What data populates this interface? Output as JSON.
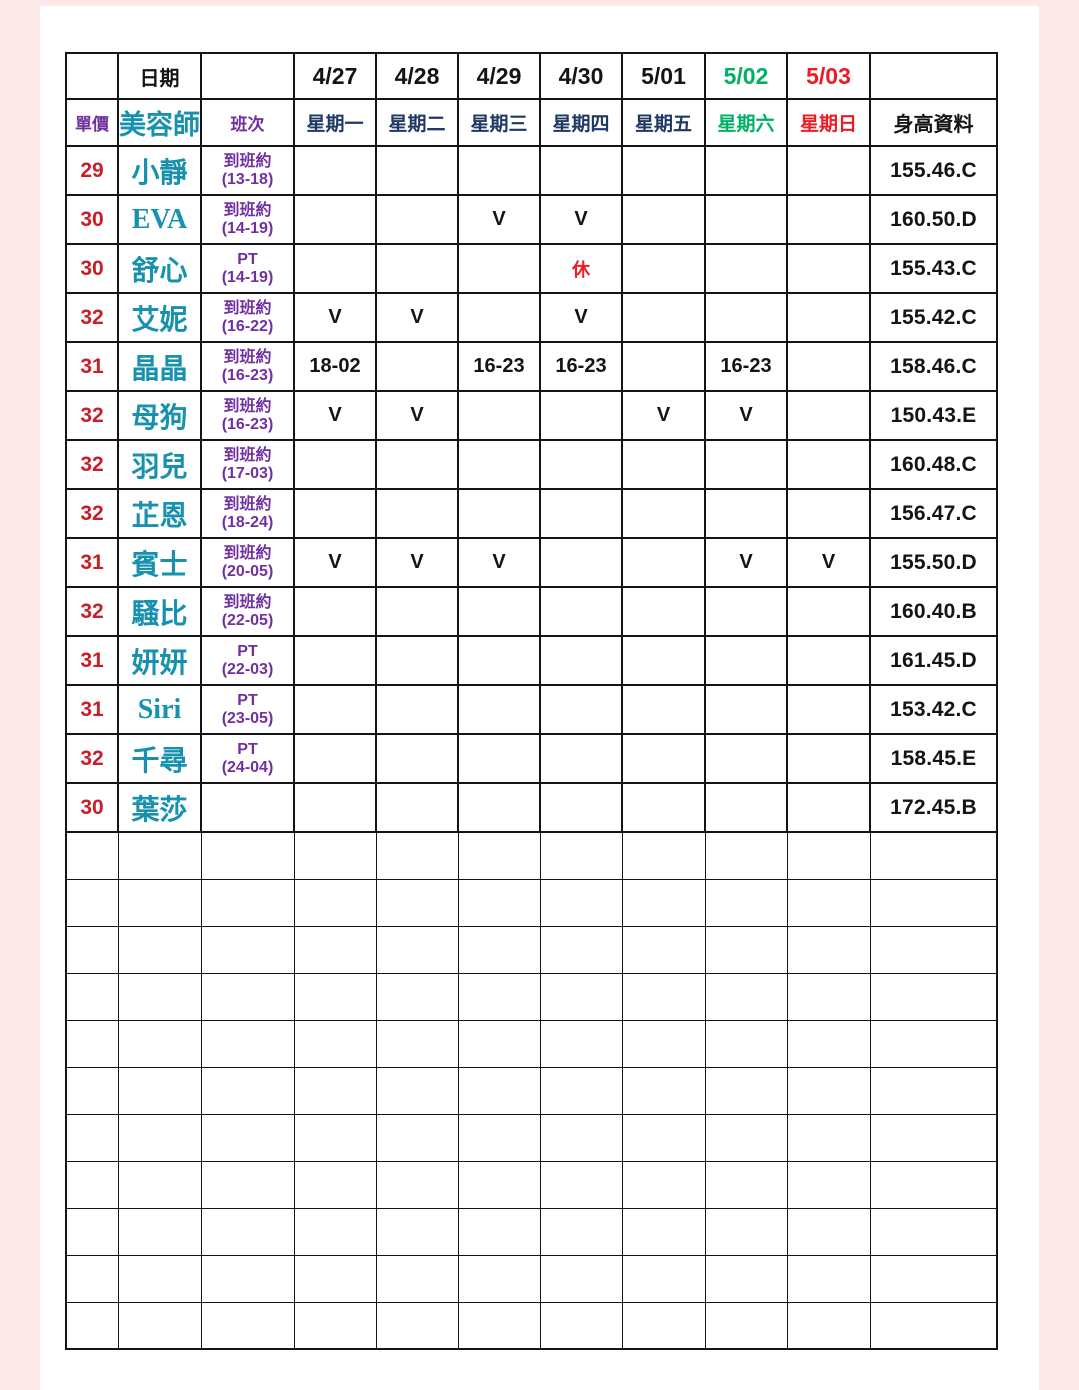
{
  "page": {
    "background_color": "#fce9e7",
    "paper_color": "#ffffff"
  },
  "colors": {
    "price_red": "#C81E28",
    "name_teal": "#1791AE",
    "shift_purple": "#7030A0",
    "weekday_navy": "#1F3864",
    "saturday_green": "#00B164",
    "sunday_red": "#EC1C24",
    "text_black": "#141414"
  },
  "table": {
    "date_label": "日期",
    "price_label": "單價",
    "artist_label": "美容師",
    "shift_label": "班次",
    "height_label": "身高資料",
    "rest_mark": "休",
    "dates": [
      {
        "label": "4/27",
        "color": "#141414"
      },
      {
        "label": "4/28",
        "color": "#141414"
      },
      {
        "label": "4/29",
        "color": "#141414"
      },
      {
        "label": "4/30",
        "color": "#141414"
      },
      {
        "label": "5/01",
        "color": "#141414"
      },
      {
        "label": "5/02",
        "color": "#00B164"
      },
      {
        "label": "5/03",
        "color": "#EC1C24"
      }
    ],
    "weekdays": [
      {
        "label": "星期一",
        "color": "#1F3864"
      },
      {
        "label": "星期二",
        "color": "#1F3864"
      },
      {
        "label": "星期三",
        "color": "#1F3864"
      },
      {
        "label": "星期四",
        "color": "#1F3864"
      },
      {
        "label": "星期五",
        "color": "#1F3864"
      },
      {
        "label": "星期六",
        "color": "#00B164"
      },
      {
        "label": "星期日",
        "color": "#EC1C24"
      }
    ],
    "rows": [
      {
        "price": "29",
        "name": "小靜",
        "shift": [
          "到班約",
          "(13-18)"
        ],
        "days": [
          "",
          "",
          "",
          "",
          "",
          "",
          ""
        ],
        "height": "155.46.C"
      },
      {
        "price": "30",
        "name": "EVA",
        "shift": [
          "到班約",
          "(14-19)"
        ],
        "days": [
          "",
          "",
          "V",
          "V",
          "",
          "",
          ""
        ],
        "height": "160.50.D"
      },
      {
        "price": "30",
        "name": "舒心",
        "shift": [
          "PT",
          "(14-19)"
        ],
        "days": [
          "",
          "",
          "",
          "休",
          "",
          "",
          ""
        ],
        "height": "155.43.C"
      },
      {
        "price": "32",
        "name": "艾妮",
        "shift": [
          "到班約",
          "(16-22)"
        ],
        "days": [
          "V",
          "V",
          "",
          "V",
          "",
          "",
          ""
        ],
        "height": "155.42.C"
      },
      {
        "price": "31",
        "name": "晶晶",
        "shift": [
          "到班約",
          "(16-23)"
        ],
        "days": [
          "18-02",
          "",
          "16-23",
          "16-23",
          "",
          "16-23",
          ""
        ],
        "height": "158.46.C"
      },
      {
        "price": "32",
        "name": "母狗",
        "shift": [
          "到班約",
          "(16-23)"
        ],
        "days": [
          "V",
          "V",
          "",
          "",
          "V",
          "V",
          ""
        ],
        "height": "150.43.E"
      },
      {
        "price": "32",
        "name": "羽兒",
        "shift": [
          "到班約",
          "(17-03)"
        ],
        "days": [
          "",
          "",
          "",
          "",
          "",
          "",
          ""
        ],
        "height": "160.48.C"
      },
      {
        "price": "32",
        "name": "芷恩",
        "shift": [
          "到班約",
          "(18-24)"
        ],
        "days": [
          "",
          "",
          "",
          "",
          "",
          "",
          ""
        ],
        "height": "156.47.C"
      },
      {
        "price": "31",
        "name": "賓士",
        "shift": [
          "到班約",
          "(20-05)"
        ],
        "days": [
          "V",
          "V",
          "V",
          "",
          "",
          "V",
          "V"
        ],
        "height": "155.50.D"
      },
      {
        "price": "32",
        "name": "騷比",
        "shift": [
          "到班約",
          "(22-05)"
        ],
        "days": [
          "",
          "",
          "",
          "",
          "",
          "",
          ""
        ],
        "height": "160.40.B"
      },
      {
        "price": "31",
        "name": "妍妍",
        "shift": [
          "PT",
          "(22-03)"
        ],
        "days": [
          "",
          "",
          "",
          "",
          "",
          "",
          ""
        ],
        "height": "161.45.D"
      },
      {
        "price": "31",
        "name": "Siri",
        "shift": [
          "PT",
          "(23-05)"
        ],
        "days": [
          "",
          "",
          "",
          "",
          "",
          "",
          ""
        ],
        "height": "153.42.C"
      },
      {
        "price": "32",
        "name": "千尋",
        "shift": [
          "PT",
          "(24-04)"
        ],
        "days": [
          "",
          "",
          "",
          "",
          "",
          "",
          ""
        ],
        "height": "158.45.E"
      },
      {
        "price": "30",
        "name": "葉莎",
        "shift": [
          "",
          ""
        ],
        "days": [
          "",
          "",
          "",
          "",
          "",
          "",
          ""
        ],
        "height": "172.45.B"
      }
    ],
    "empty_row_count": 11
  }
}
